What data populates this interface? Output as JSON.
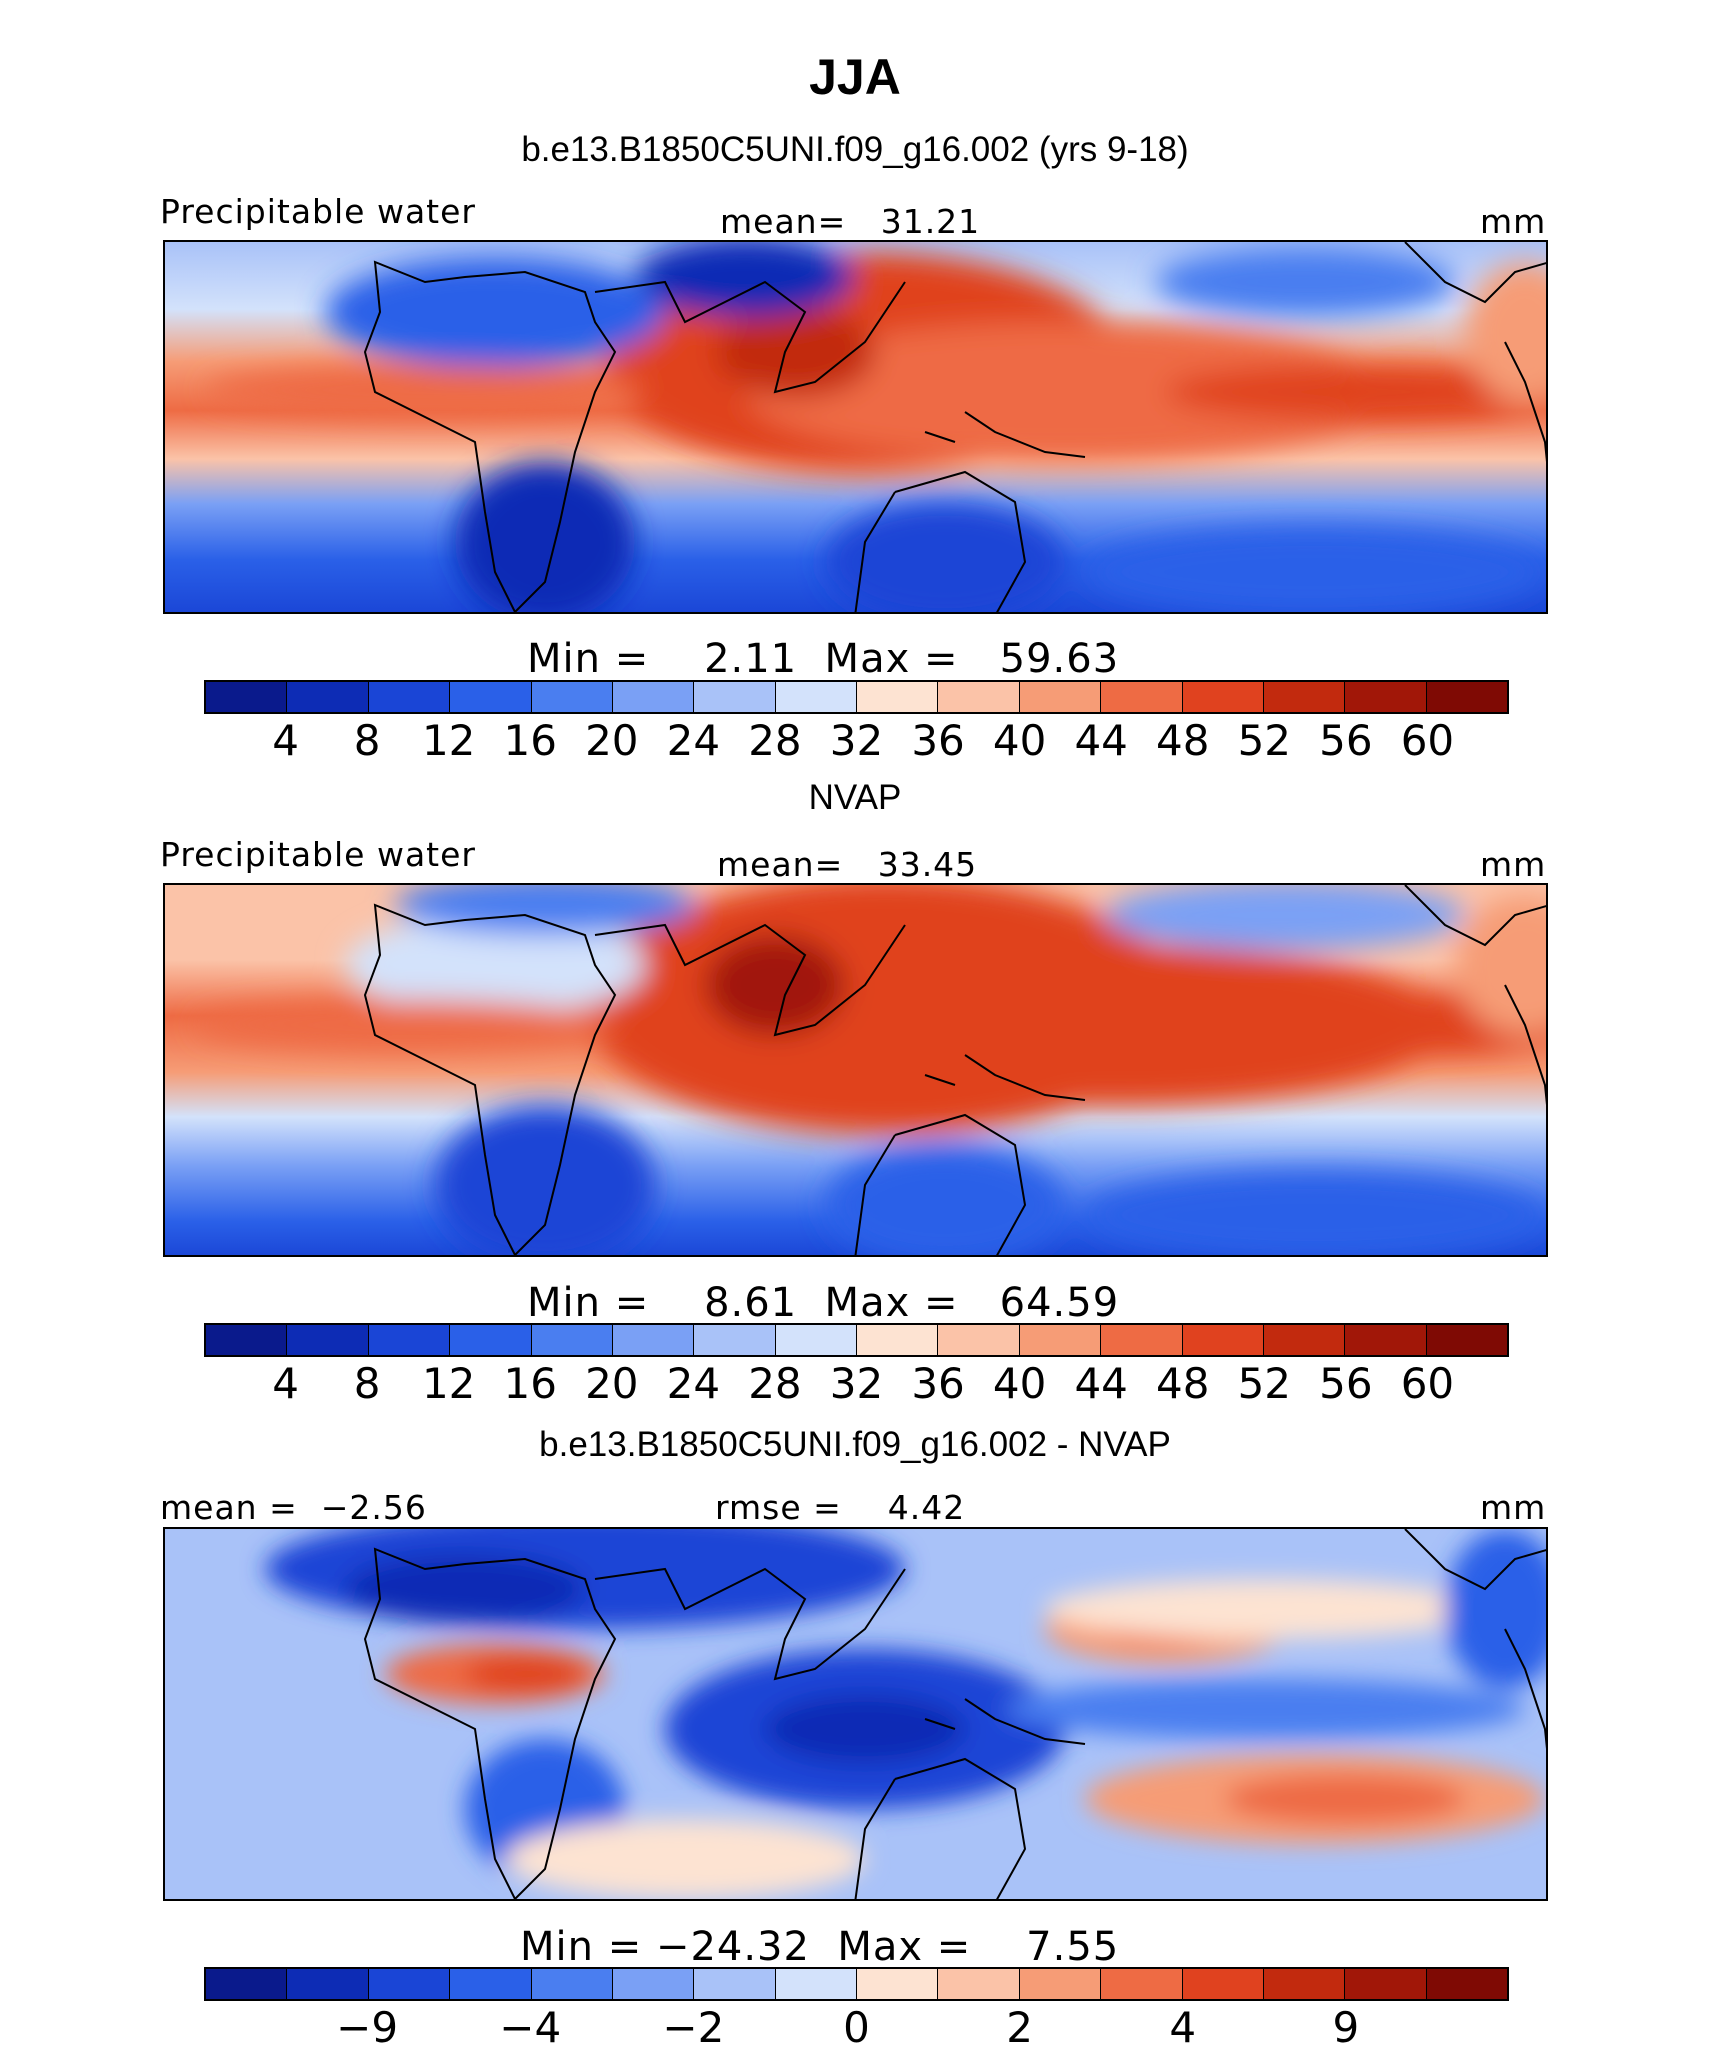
{
  "figure": {
    "title": "JJA"
  },
  "chart_data": [
    {
      "type": "heatmap",
      "title": "b.e13.B1850C5UNI.f09_g16.002 (yrs 9-18)",
      "left_label": "Precipitable water",
      "center_label": "mean=   31.21",
      "right_label": "mm",
      "stats": "Min =    2.11  Max =   59.63",
      "min": 2.11,
      "max": 59.63,
      "mean": 31.21,
      "colorbar_ticks": [
        "4",
        "8",
        "12",
        "16",
        "20",
        "24",
        "28",
        "32",
        "36",
        "40",
        "44",
        "48",
        "52",
        "56",
        "60"
      ]
    },
    {
      "type": "heatmap",
      "title": "NVAP",
      "left_label": "Precipitable water",
      "center_label": "mean=   33.45",
      "right_label": "mm",
      "stats": "Min =    8.61  Max =   64.59",
      "min": 8.61,
      "max": 64.59,
      "mean": 33.45,
      "colorbar_ticks": [
        "4",
        "8",
        "12",
        "16",
        "20",
        "24",
        "28",
        "32",
        "36",
        "40",
        "44",
        "48",
        "52",
        "56",
        "60"
      ]
    },
    {
      "type": "heatmap",
      "title": "b.e13.B1850C5UNI.f09_g16.002 - NVAP",
      "left_label": "mean =  −2.56",
      "center_label": "rmse =    4.42",
      "right_label": "mm",
      "stats": "Min = −24.32  Max =    7.55",
      "min": -24.32,
      "max": 7.55,
      "mean": -2.56,
      "rmse": 4.42,
      "colorbar_ticks": [
        "−9",
        "−4",
        "−2",
        "0",
        "2",
        "4",
        "9"
      ]
    }
  ],
  "palette": [
    "#0a1a8c",
    "#0d2cb5",
    "#1a45d6",
    "#2a60e8",
    "#4a7ef0",
    "#7aa0f5",
    "#a9c2f8",
    "#d3e2fb",
    "#fde3d2",
    "#fbc3a8",
    "#f69c76",
    "#ee6b44",
    "#e0421f",
    "#c22a0e",
    "#a11708",
    "#7f0a04"
  ]
}
